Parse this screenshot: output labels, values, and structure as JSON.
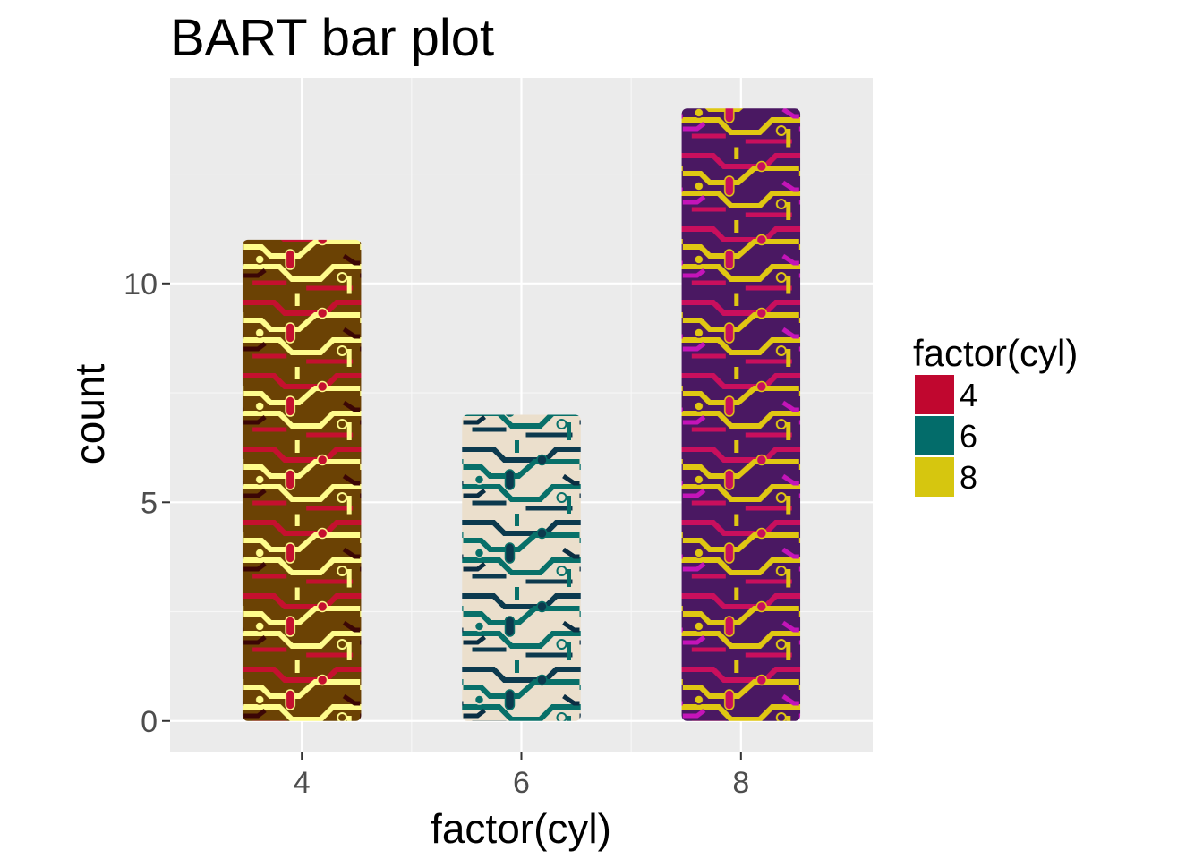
{
  "chart_data": {
    "type": "bar",
    "title": "BART bar plot",
    "xlabel": "factor(cyl)",
    "ylabel": "count",
    "categories": [
      "4",
      "6",
      "8"
    ],
    "values": [
      11,
      7,
      14
    ],
    "ylim": [
      -0.7,
      14.7
    ],
    "yticks": [
      0,
      5,
      10
    ],
    "grid": true,
    "legend": {
      "title": "factor(cyl)",
      "placement": "right",
      "entries": [
        {
          "label": "4",
          "color": "#c0072f"
        },
        {
          "label": "6",
          "color": "#036c6a"
        },
        {
          "label": "8",
          "color": "#d6c60f"
        }
      ]
    },
    "fills": [
      {
        "bg": "#6b4204",
        "c1": "#c5102f",
        "c2": "#fefc8c",
        "c3": "#3b0605"
      },
      {
        "bg": "#ebdfcc",
        "c1": "#0c3a4e",
        "c2": "#087069",
        "c3": "#0b2e43"
      },
      {
        "bg": "#4a1862",
        "c1": "#c90f5d",
        "c2": "#e0c712",
        "c3": "#c414b8"
      }
    ]
  }
}
